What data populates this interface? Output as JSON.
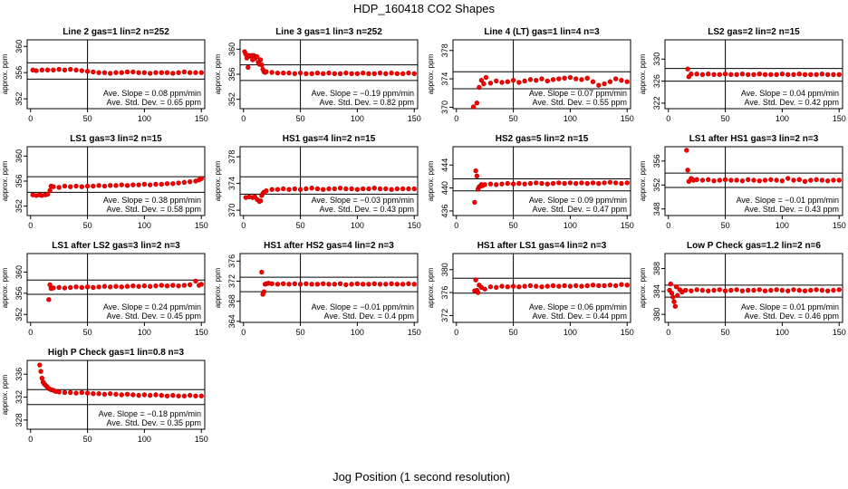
{
  "figure": {
    "title": "HDP_160418  CO2 Shapes",
    "xlabel": "Jog Position (1 second resolution)"
  },
  "colors": {
    "points": "#ff0000",
    "point_stroke": "#cc0000",
    "axes": "#000000",
    "background": "#ffffff"
  },
  "chart_data": [
    {
      "type": "scatter",
      "title": "Line 2 gas=1 lin=2 n=252",
      "ylabel": "approx. ppm",
      "xlim": [
        -3,
        153
      ],
      "ylim": [
        350.5,
        361
      ],
      "yticks": [
        352,
        356,
        360
      ],
      "xticks": [
        0,
        50,
        100,
        150
      ],
      "hlines": [
        357.5,
        355.0
      ],
      "vline": 50,
      "slope": "Ave. Slope = 0.08  ppm/min",
      "std": "Ave. Std. Dev. = 0.65  ppm",
      "x": [
        2,
        5,
        10,
        15,
        20,
        25,
        30,
        35,
        40,
        45,
        50,
        55,
        60,
        65,
        70,
        75,
        80,
        85,
        90,
        95,
        100,
        105,
        110,
        115,
        120,
        125,
        130,
        135,
        140,
        145,
        150
      ],
      "y": [
        356.4,
        356.3,
        356.4,
        356.4,
        356.4,
        356.5,
        356.4,
        356.5,
        356.4,
        356.3,
        356.2,
        356.1,
        356.0,
        356.0,
        355.9,
        356.0,
        356.0,
        356.1,
        356.1,
        356.0,
        356.0,
        355.9,
        356.0,
        356.0,
        356.0,
        355.9,
        356.0,
        356.1,
        356.0,
        356.0,
        356.0
      ]
    },
    {
      "type": "scatter",
      "title": "Line 3 gas=1 lin=3 n=252",
      "ylabel": "approx. ppm",
      "xlim": [
        -3,
        153
      ],
      "ylim": [
        350.5,
        361.5
      ],
      "yticks": [
        352,
        356,
        360
      ],
      "xticks": [
        0,
        50,
        100,
        150
      ],
      "hlines": [
        357.5,
        355.0
      ],
      "vline": 50,
      "slope": "Ave. Slope = −0.19  ppm/min",
      "std": "Ave. Std. Dev. = 0.82  ppm",
      "x": [
        1,
        2,
        3,
        4,
        5,
        6,
        7,
        8,
        9,
        10,
        11,
        12,
        13,
        14,
        15,
        16,
        17,
        18,
        19,
        20,
        25,
        30,
        35,
        40,
        45,
        50,
        55,
        60,
        65,
        70,
        75,
        80,
        85,
        90,
        95,
        100,
        105,
        110,
        115,
        120,
        125,
        130,
        135,
        140,
        145,
        150
      ],
      "y": [
        359.6,
        359.2,
        358.6,
        357.1,
        359.0,
        358.9,
        359.0,
        358.3,
        359.0,
        358.5,
        358.8,
        358.8,
        357.9,
        357.6,
        358.3,
        357.5,
        356.8,
        356.4,
        356.3,
        356.4,
        356.3,
        356.2,
        356.2,
        356.2,
        356.1,
        356.2,
        356.1,
        356.1,
        356.2,
        356.1,
        356.2,
        356.1,
        356.1,
        356.2,
        356.1,
        356.1,
        356.2,
        356.1,
        356.1,
        356.2,
        356.1,
        356.2,
        356.1,
        356.1,
        356.2,
        356.1
      ]
    },
    {
      "type": "scatter",
      "title": "Line 4 (LT) gas=1 lin=4 n=3",
      "ylabel": "approx. ppm",
      "xlim": [
        -3,
        153
      ],
      "ylim": [
        369.8,
        379.5
      ],
      "yticks": [
        370,
        374,
        378
      ],
      "xticks": [
        0,
        50,
        100,
        150
      ],
      "hlines": [
        375.0,
        372.6
      ],
      "vline": 50,
      "slope": "Ave. Slope = 0.07  ppm/min",
      "std": "Ave. Std. Dev. = 0.55  ppm",
      "x": [
        15,
        18,
        20,
        22,
        24,
        26,
        30,
        35,
        40,
        45,
        50,
        55,
        60,
        65,
        70,
        75,
        80,
        85,
        90,
        95,
        100,
        105,
        110,
        115,
        120,
        125,
        130,
        135,
        140,
        145,
        150
      ],
      "y": [
        369.9,
        370.6,
        372.8,
        373.8,
        373.3,
        374.2,
        373.4,
        373.7,
        373.5,
        373.6,
        373.8,
        373.5,
        373.7,
        373.9,
        373.8,
        374.0,
        373.7,
        373.9,
        374.0,
        374.1,
        374.2,
        374.0,
        373.9,
        374.1,
        373.6,
        373.1,
        373.3,
        373.6,
        374.0,
        373.8,
        373.6
      ]
    },
    {
      "type": "scatter",
      "title": "LS2 gas=2 lin=2 n=15",
      "ylabel": "approx. ppm",
      "xlim": [
        -3,
        153
      ],
      "ylim": [
        321,
        333.5
      ],
      "yticks": [
        322,
        326,
        330
      ],
      "xticks": [
        0,
        50,
        100,
        150
      ],
      "hlines": [
        328.3,
        326.0
      ],
      "vline": 50,
      "slope": "Ave. Slope = 0.04  ppm/min",
      "std": "Ave. Std. Dev. = 0.42  ppm",
      "x": [
        17,
        18,
        20,
        25,
        30,
        35,
        40,
        45,
        50,
        55,
        60,
        65,
        70,
        75,
        80,
        85,
        90,
        95,
        100,
        105,
        110,
        115,
        120,
        125,
        130,
        135,
        140,
        145,
        150
      ],
      "y": [
        328.2,
        326.8,
        327.3,
        327.3,
        327.2,
        327.3,
        327.2,
        327.2,
        327.3,
        327.2,
        327.2,
        327.3,
        327.2,
        327.2,
        327.3,
        327.2,
        327.2,
        327.2,
        327.3,
        327.2,
        327.2,
        327.3,
        327.2,
        327.2,
        327.2,
        327.3,
        327.2,
        327.2,
        327.2
      ]
    },
    {
      "type": "scatter",
      "title": "LS1 gas=3 lin=2 n=15",
      "ylabel": "approx. ppm",
      "xlim": [
        -3,
        153
      ],
      "ylim": [
        350.5,
        361.5
      ],
      "yticks": [
        352,
        356,
        360
      ],
      "xticks": [
        0,
        50,
        100,
        150
      ],
      "hlines": [
        356.7,
        354.2
      ],
      "vline": 50,
      "slope": "Ave. Slope = 0.38  ppm/min",
      "std": "Ave. Std. Dev. = 0.58  ppm",
      "x": [
        2,
        5,
        8,
        10,
        13,
        15,
        17,
        18,
        20,
        25,
        30,
        35,
        40,
        45,
        50,
        55,
        60,
        65,
        70,
        75,
        80,
        85,
        90,
        95,
        100,
        105,
        110,
        115,
        120,
        125,
        130,
        135,
        140,
        145,
        148,
        150
      ],
      "y": [
        353.8,
        353.7,
        353.8,
        353.7,
        353.8,
        353.9,
        354.5,
        355.2,
        355.1,
        355.0,
        355.2,
        355.1,
        355.2,
        355.1,
        355.2,
        355.2,
        355.3,
        355.2,
        355.3,
        355.3,
        355.4,
        355.3,
        355.4,
        355.4,
        355.5,
        355.4,
        355.5,
        355.5,
        355.6,
        355.6,
        355.7,
        355.8,
        355.9,
        356.0,
        356.2,
        356.4
      ]
    },
    {
      "type": "scatter",
      "title": "HS1 gas=4 lin=2 n=15",
      "ylabel": "approx. ppm",
      "xlim": [
        -3,
        153
      ],
      "ylim": [
        369.2,
        379.5
      ],
      "yticks": [
        370,
        374,
        378
      ],
      "xticks": [
        0,
        50,
        100,
        150
      ],
      "hlines": [
        375.0,
        372.4
      ],
      "vline": 50,
      "slope": "Ave. Slope = −0.03  ppm/min",
      "std": "Ave. Std. Dev. = 0.43  ppm",
      "x": [
        2,
        5,
        8,
        10,
        12,
        14,
        15,
        16,
        17,
        18,
        20,
        25,
        30,
        35,
        40,
        45,
        50,
        55,
        60,
        65,
        70,
        75,
        80,
        85,
        90,
        95,
        100,
        105,
        110,
        115,
        120,
        125,
        130,
        135,
        140,
        145,
        150
      ],
      "y": [
        371.9,
        372.0,
        371.9,
        372.0,
        371.6,
        371.3,
        371.4,
        372.2,
        372.5,
        372.7,
        372.9,
        373.1,
        373.1,
        373.2,
        373.1,
        373.2,
        373.1,
        373.2,
        373.3,
        373.2,
        373.1,
        373.2,
        373.2,
        373.3,
        373.2,
        373.2,
        373.1,
        373.2,
        373.2,
        373.3,
        373.2,
        373.2,
        373.1,
        373.2,
        373.2,
        373.2,
        373.2
      ]
    },
    {
      "type": "scatter",
      "title": "HS2 gas=5 lin=2 n=15",
      "ylabel": "approx. ppm",
      "xlim": [
        -3,
        153
      ],
      "ylim": [
        435.2,
        447.2
      ],
      "yticks": [
        436,
        440,
        444
      ],
      "xticks": [
        0,
        50,
        100,
        150
      ],
      "hlines": [
        441.6,
        439.5
      ],
      "vline": 50,
      "slope": "Ave. Slope = 0.09  ppm/min",
      "std": "Ave. Std. Dev. = 0.47  ppm",
      "x": [
        16,
        17,
        18,
        19,
        20,
        21,
        22,
        23,
        25,
        30,
        35,
        40,
        45,
        50,
        55,
        60,
        65,
        70,
        75,
        80,
        85,
        90,
        95,
        100,
        105,
        110,
        115,
        120,
        125,
        130,
        135,
        140,
        145,
        150
      ],
      "y": [
        437.5,
        443.0,
        442.1,
        439.8,
        440.2,
        440.3,
        440.6,
        440.4,
        440.6,
        440.7,
        440.6,
        440.7,
        440.8,
        440.7,
        440.8,
        440.7,
        440.8,
        440.9,
        440.8,
        440.7,
        440.8,
        440.9,
        440.8,
        440.9,
        440.8,
        440.9,
        440.8,
        440.9,
        440.8,
        440.9,
        441.0,
        440.9,
        440.8,
        440.9
      ]
    },
    {
      "type": "scatter",
      "title": "LS1 after HS1 gas=3 lin=2 n=3",
      "ylabel": "approx. ppm",
      "xlim": [
        -3,
        153
      ],
      "ylim": [
        346.9,
        358.4
      ],
      "yticks": [
        348,
        352,
        356
      ],
      "xticks": [
        0,
        50,
        100,
        150
      ],
      "hlines": [
        354.0,
        351.6
      ],
      "vline": 50,
      "slope": "Ave. Slope = −0.01  ppm/min",
      "std": "Ave. Std. Dev. = 0.43  ppm",
      "x": [
        16,
        17,
        18,
        20,
        22,
        25,
        30,
        35,
        40,
        45,
        50,
        55,
        60,
        65,
        70,
        75,
        80,
        85,
        90,
        95,
        100,
        105,
        110,
        115,
        120,
        125,
        130,
        135,
        140,
        145,
        150
      ],
      "y": [
        357.8,
        354.5,
        352.6,
        353.1,
        352.8,
        352.9,
        352.8,
        352.9,
        352.7,
        352.8,
        352.9,
        352.8,
        352.8,
        352.7,
        352.9,
        352.8,
        352.7,
        352.8,
        352.9,
        352.8,
        352.7,
        353.1,
        352.8,
        352.9,
        352.6,
        352.8,
        352.9,
        352.8,
        352.7,
        352.8,
        352.8
      ]
    },
    {
      "type": "scatter",
      "title": "LS1 after LS2 gas=3 lin=2 n=3",
      "ylabel": "approx. ppm",
      "xlim": [
        -3,
        153
      ],
      "ylim": [
        350.5,
        363.5
      ],
      "yticks": [
        352,
        356,
        360
      ],
      "xticks": [
        0,
        50,
        100,
        150
      ],
      "hlines": [
        358.5,
        355.8
      ],
      "vline": 50,
      "slope": "Ave. Slope = 0.24  ppm/min",
      "std": "Ave. Std. Dev. = 0.45  ppm",
      "x": [
        16,
        17,
        18,
        20,
        25,
        30,
        35,
        40,
        45,
        50,
        55,
        60,
        65,
        70,
        75,
        80,
        85,
        90,
        95,
        100,
        105,
        110,
        115,
        120,
        125,
        130,
        135,
        140,
        145,
        148,
        150
      ],
      "y": [
        354.8,
        357.6,
        356.9,
        357.0,
        357.1,
        357.0,
        357.1,
        357.2,
        357.1,
        357.2,
        357.1,
        357.2,
        357.3,
        357.2,
        357.3,
        357.2,
        357.3,
        357.4,
        357.3,
        357.4,
        357.3,
        357.4,
        357.5,
        357.4,
        357.5,
        357.4,
        357.5,
        357.6,
        358.3,
        357.5,
        357.7
      ]
    },
    {
      "type": "scatter",
      "title": "HS1 after HS2 gas=4 lin=2 n=3",
      "ylabel": "approx. ppm",
      "xlim": [
        -3,
        153
      ],
      "ylim": [
        363.8,
        377.5
      ],
      "yticks": [
        364,
        368,
        372,
        376
      ],
      "xticks": [
        0,
        50,
        100,
        150
      ],
      "hlines": [
        372.8,
        369.9
      ],
      "vline": 50,
      "slope": "Ave. Slope = −0.01  ppm/min",
      "std": "Ave. Std. Dev. = 0.4  ppm",
      "x": [
        16,
        17,
        18,
        19,
        20,
        22,
        25,
        30,
        35,
        40,
        45,
        50,
        55,
        60,
        65,
        70,
        75,
        80,
        85,
        90,
        95,
        100,
        105,
        110,
        115,
        120,
        125,
        130,
        135,
        140,
        145,
        150
      ],
      "y": [
        373.8,
        369.4,
        369.9,
        371.4,
        371.5,
        371.6,
        371.5,
        371.4,
        371.5,
        371.4,
        371.5,
        371.4,
        371.5,
        371.4,
        371.4,
        371.5,
        371.4,
        371.4,
        371.5,
        371.3,
        371.4,
        371.5,
        371.4,
        371.4,
        371.5,
        371.4,
        371.4,
        371.5,
        371.4,
        371.4,
        371.5,
        371.4
      ]
    },
    {
      "type": "scatter",
      "title": "HS1 after LS1 gas=4 lin=2 n=3",
      "ylabel": "approx. ppm",
      "xlim": [
        -3,
        153
      ],
      "ylim": [
        370.8,
        382.8
      ],
      "yticks": [
        372,
        376,
        380
      ],
      "xticks": [
        0,
        50,
        100,
        150
      ],
      "hlines": [
        378.5,
        375.9
      ],
      "vline": 50,
      "slope": "Ave. Slope = 0.06  ppm/min",
      "std": "Ave. Std. Dev. = 0.44  ppm",
      "x": [
        16,
        17,
        18,
        19,
        20,
        22,
        25,
        30,
        35,
        40,
        45,
        50,
        55,
        60,
        65,
        70,
        75,
        80,
        85,
        90,
        95,
        100,
        105,
        110,
        115,
        120,
        125,
        130,
        135,
        140,
        145,
        150
      ],
      "y": [
        376.3,
        378.2,
        376.4,
        376.0,
        377.3,
        376.9,
        376.6,
        377.0,
        376.9,
        377.1,
        377.0,
        377.1,
        377.0,
        377.1,
        377.2,
        377.1,
        377.0,
        377.1,
        377.2,
        377.1,
        377.2,
        377.1,
        377.2,
        377.1,
        377.2,
        377.3,
        377.2,
        377.2,
        377.3,
        377.2,
        377.4,
        377.3
      ]
    },
    {
      "type": "scatter",
      "title": "Low P Check gas=1.2 lin=2 n=6",
      "ylabel": "approx. ppm",
      "xlim": [
        -3,
        153
      ],
      "ylim": [
        378.6,
        390.6
      ],
      "yticks": [
        380,
        384,
        388
      ],
      "xticks": [
        0,
        50,
        100,
        150
      ],
      "hlines": [
        385.1,
        383.0
      ],
      "vline": 50,
      "slope": "Ave. Slope = 0.01  ppm/min",
      "std": "Ave. Std. Dev. = 0.46  ppm",
      "x": [
        1,
        2,
        3,
        4,
        5,
        6,
        7,
        8,
        10,
        12,
        15,
        20,
        25,
        30,
        35,
        40,
        45,
        50,
        55,
        60,
        65,
        70,
        75,
        80,
        85,
        90,
        95,
        100,
        105,
        110,
        115,
        120,
        125,
        130,
        135,
        140,
        145,
        150
      ],
      "y": [
        384.2,
        385.3,
        383.7,
        383.0,
        382.2,
        381.4,
        384.8,
        383.3,
        384.3,
        383.9,
        384.2,
        384.1,
        384.3,
        384.2,
        384.1,
        384.2,
        384.3,
        384.1,
        384.2,
        384.3,
        384.1,
        384.2,
        384.2,
        384.3,
        384.1,
        384.2,
        384.3,
        384.2,
        384.1,
        384.3,
        384.2,
        384.1,
        384.2,
        384.3,
        384.2,
        384.1,
        384.2,
        384.3
      ]
    },
    {
      "type": "scatter",
      "title": "High P Check gas=1 lin=0.8 n=3",
      "ylabel": "approx. ppm",
      "xlim": [
        -3,
        153
      ],
      "ylim": [
        326.4,
        338.4
      ],
      "yticks": [
        328,
        332,
        336
      ],
      "xticks": [
        0,
        50,
        100,
        150
      ],
      "hlines": [
        333.3,
        330.7
      ],
      "vline": 50,
      "slope": "Ave. Slope = −0.18  ppm/min",
      "std": "Ave. Std. Dev. = 0.35  ppm",
      "x": [
        8,
        9,
        10,
        11,
        12,
        13,
        14,
        15,
        16,
        18,
        20,
        22,
        25,
        30,
        35,
        40,
        45,
        50,
        55,
        60,
        65,
        70,
        75,
        80,
        85,
        90,
        95,
        100,
        105,
        110,
        115,
        120,
        125,
        130,
        135,
        140,
        145,
        150
      ],
      "y": [
        337.6,
        336.5,
        335.3,
        334.6,
        334.3,
        334.1,
        333.9,
        333.7,
        333.5,
        333.3,
        333.2,
        333.0,
        332.9,
        332.8,
        332.8,
        332.7,
        332.8,
        332.7,
        332.6,
        332.6,
        332.5,
        332.6,
        332.5,
        332.4,
        332.5,
        332.4,
        332.3,
        332.4,
        332.3,
        332.4,
        332.3,
        332.2,
        332.3,
        332.2,
        332.2,
        332.3,
        332.2,
        332.2
      ]
    }
  ]
}
